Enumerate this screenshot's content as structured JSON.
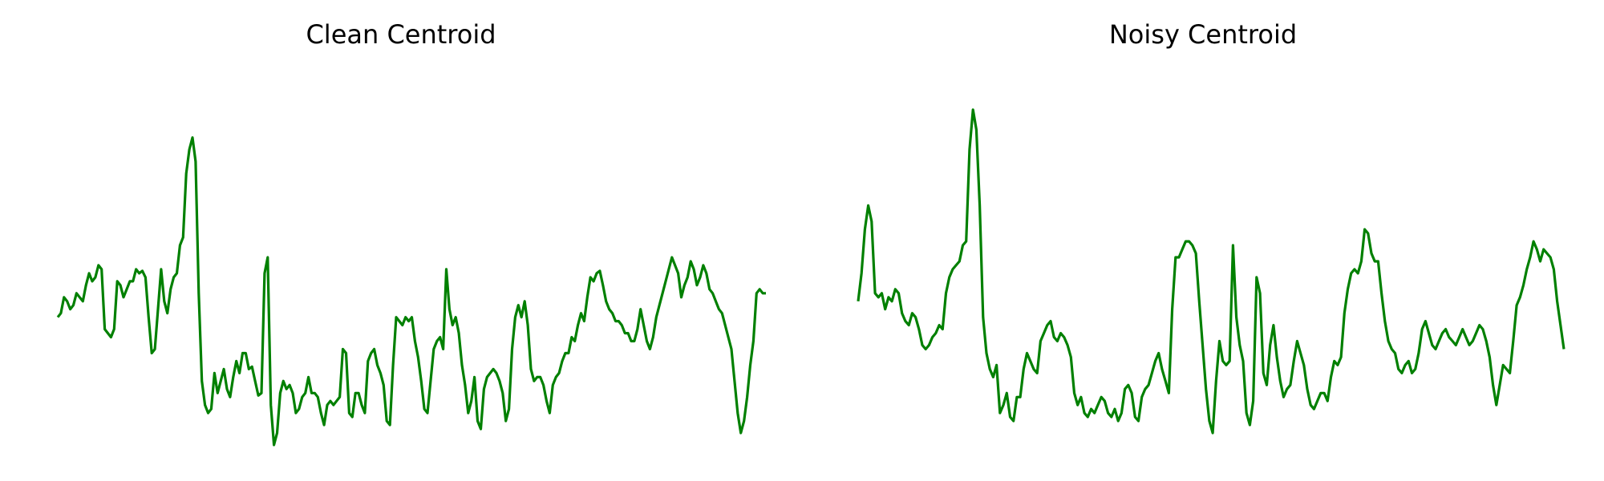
{
  "chart_data": [
    {
      "type": "line",
      "title": "Clean Centroid",
      "axes": "off",
      "grid": false,
      "color": "#008000",
      "ylim": [
        -1.6,
        3.2
      ],
      "values": [
        0.0,
        0.05,
        0.25,
        0.2,
        0.1,
        0.15,
        0.3,
        0.25,
        0.2,
        0.4,
        0.55,
        0.45,
        0.5,
        0.65,
        0.6,
        -0.15,
        -0.2,
        -0.25,
        -0.15,
        0.45,
        0.4,
        0.25,
        0.35,
        0.45,
        0.45,
        0.6,
        0.55,
        0.58,
        0.5,
        0.0,
        -0.45,
        -0.4,
        0.1,
        0.6,
        0.2,
        0.05,
        0.35,
        0.5,
        0.55,
        0.9,
        1.0,
        1.8,
        2.1,
        2.25,
        1.95,
        0.3,
        -0.8,
        -1.1,
        -1.2,
        -1.15,
        -0.7,
        -0.95,
        -0.8,
        -0.65,
        -0.9,
        -1.0,
        -0.75,
        -0.55,
        -0.7,
        -0.45,
        -0.45,
        -0.65,
        -0.62,
        -0.8,
        -0.98,
        -0.95,
        0.55,
        0.75,
        -1.1,
        -1.6,
        -1.45,
        -0.95,
        -0.8,
        -0.9,
        -0.85,
        -0.95,
        -1.2,
        -1.15,
        -1.0,
        -0.95,
        -0.75,
        -0.95,
        -0.95,
        -1.0,
        -1.2,
        -1.35,
        -1.1,
        -1.05,
        -1.1,
        -1.05,
        -1.0,
        -0.4,
        -0.45,
        -1.2,
        -1.25,
        -0.95,
        -0.95,
        -1.1,
        -1.2,
        -0.55,
        -0.45,
        -0.4,
        -0.6,
        -0.7,
        -0.85,
        -1.3,
        -1.35,
        -0.6,
        0.0,
        -0.05,
        -0.1,
        0.0,
        -0.05,
        0.0,
        -0.3,
        -0.5,
        -0.8,
        -1.15,
        -1.2,
        -0.8,
        -0.4,
        -0.3,
        -0.25,
        -0.4,
        0.6,
        0.1,
        -0.1,
        0.0,
        -0.2,
        -0.6,
        -0.85,
        -1.2,
        -1.05,
        -0.75,
        -1.3,
        -1.4,
        -0.9,
        -0.75,
        -0.7,
        -0.65,
        -0.7,
        -0.8,
        -0.95,
        -1.3,
        -1.15,
        -0.4,
        0.0,
        0.15,
        0.0,
        0.2,
        -0.1,
        -0.65,
        -0.8,
        -0.75,
        -0.75,
        -0.85,
        -1.05,
        -1.2,
        -0.85,
        -0.75,
        -0.7,
        -0.55,
        -0.45,
        -0.45,
        -0.25,
        -0.3,
        -0.1,
        0.05,
        -0.05,
        0.25,
        0.5,
        0.45,
        0.55,
        0.58,
        0.4,
        0.2,
        0.1,
        0.05,
        -0.05,
        -0.05,
        -0.1,
        -0.2,
        -0.2,
        -0.3,
        -0.3,
        -0.15,
        0.1,
        -0.1,
        -0.3,
        -0.4,
        -0.25,
        0.0,
        0.15,
        0.3,
        0.45,
        0.6,
        0.75,
        0.65,
        0.55,
        0.25,
        0.4,
        0.5,
        0.7,
        0.6,
        0.4,
        0.5,
        0.65,
        0.55,
        0.35,
        0.3,
        0.2,
        0.1,
        0.05,
        -0.1,
        -0.25,
        -0.4,
        -0.8,
        -1.2,
        -1.45,
        -1.3,
        -1.0,
        -0.6,
        -0.3,
        0.3,
        0.35,
        0.3,
        0.3
      ]
    },
    {
      "type": "line",
      "title": "Noisy Centroid",
      "axes": "off",
      "grid": false,
      "color": "#008000",
      "ylim": [
        -1.6,
        3.2
      ],
      "values": [
        0.2,
        0.55,
        1.1,
        1.4,
        1.2,
        0.3,
        0.25,
        0.3,
        0.1,
        0.25,
        0.2,
        0.35,
        0.3,
        0.05,
        -0.05,
        -0.1,
        0.05,
        0.0,
        -0.15,
        -0.35,
        -0.4,
        -0.35,
        -0.25,
        -0.2,
        -0.1,
        -0.15,
        0.3,
        0.5,
        0.6,
        0.65,
        0.7,
        0.9,
        0.95,
        2.1,
        2.6,
        2.35,
        1.4,
        0.0,
        -0.45,
        -0.65,
        -0.75,
        -0.6,
        -1.2,
        -1.1,
        -0.95,
        -1.25,
        -1.3,
        -1.0,
        -1.0,
        -0.65,
        -0.45,
        -0.55,
        -0.65,
        -0.7,
        -0.3,
        -0.2,
        -0.1,
        -0.05,
        -0.25,
        -0.3,
        -0.2,
        -0.25,
        -0.35,
        -0.5,
        -0.95,
        -1.1,
        -1.0,
        -1.2,
        -1.25,
        -1.15,
        -1.2,
        -1.1,
        -1.0,
        -1.05,
        -1.2,
        -1.25,
        -1.15,
        -1.3,
        -1.2,
        -0.9,
        -0.85,
        -0.95,
        -1.25,
        -1.3,
        -1.0,
        -0.9,
        -0.85,
        -0.7,
        -0.55,
        -0.45,
        -0.65,
        -0.8,
        -0.95,
        0.1,
        0.75,
        0.75,
        0.85,
        0.95,
        0.95,
        0.9,
        0.8,
        0.2,
        -0.35,
        -0.9,
        -1.3,
        -1.45,
        -0.8,
        -0.3,
        -0.55,
        -0.6,
        -0.55,
        0.9,
        0.0,
        -0.35,
        -0.55,
        -1.2,
        -1.35,
        -1.05,
        0.5,
        0.3,
        -0.7,
        -0.85,
        -0.35,
        -0.1,
        -0.5,
        -0.8,
        -1.0,
        -0.9,
        -0.85,
        -0.55,
        -0.3,
        -0.45,
        -0.6,
        -0.9,
        -1.1,
        -1.15,
        -1.05,
        -0.95,
        -0.95,
        -1.05,
        -0.75,
        -0.55,
        -0.6,
        -0.5,
        0.05,
        0.35,
        0.55,
        0.6,
        0.55,
        0.7,
        1.1,
        1.05,
        0.8,
        0.7,
        0.7,
        0.3,
        -0.05,
        -0.3,
        -0.4,
        -0.45,
        -0.65,
        -0.7,
        -0.6,
        -0.55,
        -0.7,
        -0.65,
        -0.45,
        -0.15,
        -0.05,
        -0.2,
        -0.35,
        -0.4,
        -0.3,
        -0.2,
        -0.15,
        -0.25,
        -0.3,
        -0.35,
        -0.25,
        -0.15,
        -0.25,
        -0.35,
        -0.3,
        -0.2,
        -0.1,
        -0.15,
        -0.3,
        -0.5,
        -0.85,
        -1.1,
        -0.85,
        -0.6,
        -0.65,
        -0.7,
        -0.3,
        0.15,
        0.25,
        0.4,
        0.6,
        0.75,
        0.95,
        0.85,
        0.7,
        0.85,
        0.8,
        0.75,
        0.6,
        0.2,
        -0.1,
        -0.4
      ]
    }
  ]
}
